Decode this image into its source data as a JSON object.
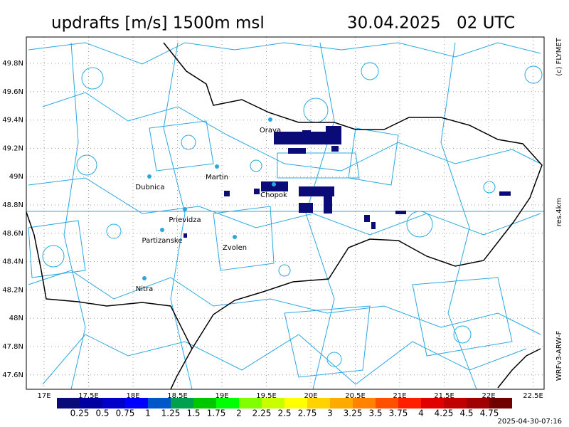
{
  "header": {
    "title": "updrafts [m/s] 1500m msl",
    "date": "30.04.2025",
    "time": "02 UTC"
  },
  "side_labels": {
    "copyright": "(c) FLYMET",
    "resolution": "res.4km",
    "model": "WRFv3-ARW-F"
  },
  "map": {
    "lat_labels": [
      "49.8N",
      "49.6N",
      "49.4N",
      "49.2N",
      "49N",
      "48.8N",
      "48.6N",
      "48.4N",
      "48.2N",
      "48N",
      "47.8N",
      "47.6N"
    ],
    "lon_labels": [
      "17E",
      "17.5E",
      "18E",
      "18.5E",
      "19E",
      "19.5E",
      "20E",
      "20.5E",
      "21E",
      "21.5E",
      "22E",
      "22.5E"
    ],
    "cities": [
      {
        "name": "Orava"
      },
      {
        "name": "Martin"
      },
      {
        "name": "Dubnica"
      },
      {
        "name": "Chopok"
      },
      {
        "name": "Prievidza"
      },
      {
        "name": "Partizanske"
      },
      {
        "name": "Zvolen"
      },
      {
        "name": "Nitra"
      }
    ]
  },
  "colorbar": {
    "colors": [
      "#0a0a78",
      "#0000a0",
      "#0000c8",
      "#0000ff",
      "#0058c8",
      "#00a050",
      "#00c800",
      "#00ff00",
      "#80ff00",
      "#c8ff00",
      "#ffff00",
      "#ffd200",
      "#ffaa00",
      "#ff8200",
      "#ff5000",
      "#ff1e00",
      "#e00000",
      "#c00000",
      "#a00000",
      "#700000"
    ],
    "labels": [
      "0.25",
      "0.5",
      "0.75",
      "1",
      "1.25",
      "1.5",
      "1.75",
      "2",
      "2.25",
      "2.5",
      "2.75",
      "3",
      "3.25",
      "3.5",
      "3.75",
      "4",
      "4.25",
      "4.5",
      "4.75"
    ]
  },
  "timestamp": "2025-04-30-07:16"
}
